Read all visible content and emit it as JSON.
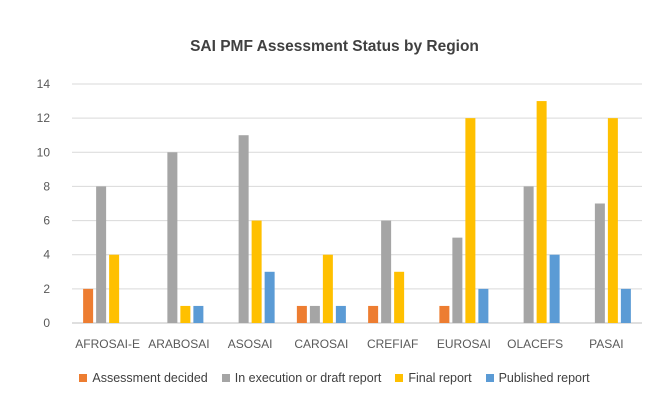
{
  "chart_data": {
    "type": "bar",
    "title": "SAI PMF Assessment Status by Region",
    "xlabel": "",
    "ylabel": "",
    "categories": [
      "AFROSAI-E",
      "ARABOSAI",
      "ASOSAI",
      "CAROSAI",
      "CREFIAF",
      "EUROSAI",
      "OLACEFS",
      "PASAI"
    ],
    "ylim": [
      0,
      14
    ],
    "yticks": [
      "0",
      "2",
      "4",
      "6",
      "8",
      "10",
      "12",
      "14"
    ],
    "grid": true,
    "legend_position": "bottom",
    "series": [
      {
        "name": "Assessment decided",
        "color": "#ED7D31",
        "values": [
          2,
          0,
          0,
          1,
          1,
          1,
          0,
          0
        ]
      },
      {
        "name": "In execution or draft report",
        "color": "#A5A5A5",
        "values": [
          8,
          10,
          11,
          1,
          6,
          5,
          8,
          7
        ]
      },
      {
        "name": "Final report",
        "color": "#FFC000",
        "values": [
          4,
          1,
          6,
          4,
          3,
          12,
          13,
          12
        ]
      },
      {
        "name": "Published report",
        "color": "#5B9BD5",
        "values": [
          0,
          1,
          3,
          1,
          0,
          2,
          4,
          2
        ]
      }
    ]
  }
}
